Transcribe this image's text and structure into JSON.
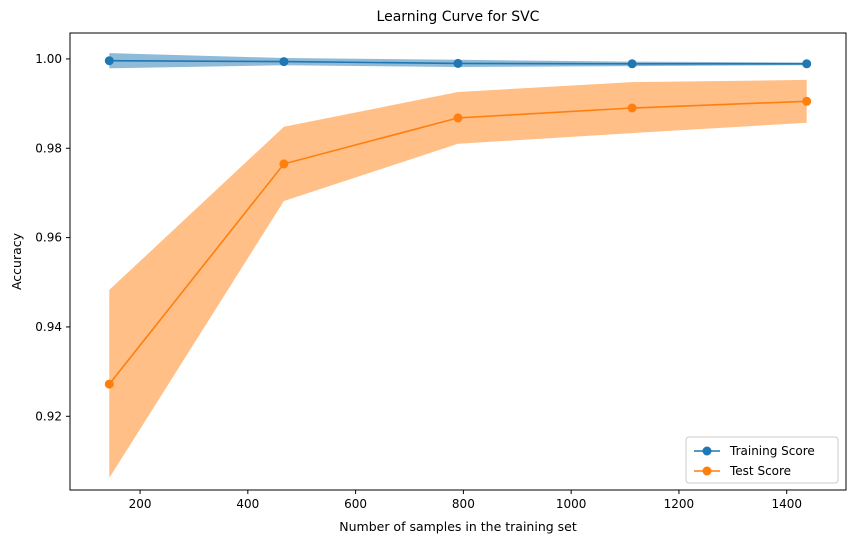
{
  "chart_data": {
    "type": "line",
    "title": "Learning Curve for SVC",
    "xlabel": "Number of samples in the training set",
    "ylabel": "Accuracy",
    "xlim": [
      70,
      1510
    ],
    "ylim": [
      0.9035,
      1.0058
    ],
    "xticks": [
      200,
      400,
      600,
      800,
      1000,
      1200,
      1400
    ],
    "yticks": [
      0.92,
      0.94,
      0.96,
      0.98,
      1.0
    ],
    "ytick_labels": [
      "0.92",
      "0.94",
      "0.96",
      "0.98",
      "1.00"
    ],
    "grid": false,
    "legend_position": "lower-right",
    "x": [
      143,
      467,
      790,
      1113,
      1437
    ],
    "series": [
      {
        "name": "Training Score",
        "color": "#1f77b4",
        "values": [
          0.9996,
          0.9994,
          0.999,
          0.9989,
          0.9989
        ],
        "band_upper": [
          1.0013,
          1.0002,
          0.9998,
          0.9994,
          0.9992
        ],
        "band_lower": [
          0.9979,
          0.9986,
          0.9982,
          0.9984,
          0.9986
        ]
      },
      {
        "name": "Test Score",
        "color": "#ff7f0e",
        "values": [
          0.9272,
          0.9765,
          0.9868,
          0.989,
          0.9905
        ],
        "band_upper": [
          0.9483,
          0.9848,
          0.9926,
          0.9948,
          0.9953
        ],
        "band_lower": [
          0.9062,
          0.9682,
          0.981,
          0.9834,
          0.9857
        ]
      }
    ]
  }
}
